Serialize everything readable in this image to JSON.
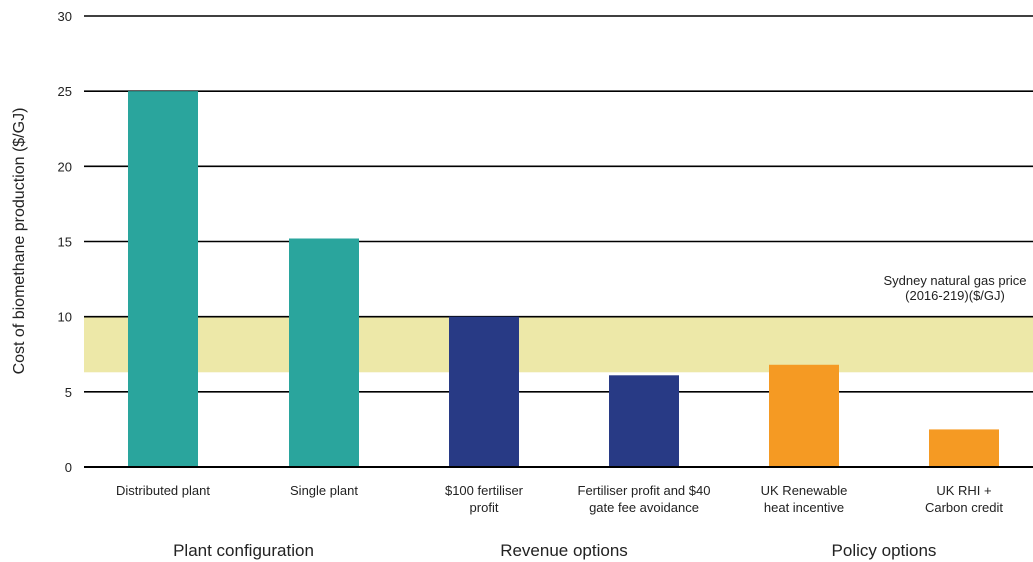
{
  "chart_data": {
    "type": "bar",
    "ylabel": "Cost of biomethane production ($/GJ)",
    "xlabel": "",
    "ylim": [
      0,
      30
    ],
    "yticks": [
      0,
      5,
      10,
      15,
      20,
      25,
      30
    ],
    "grid": true,
    "categories": [
      [
        "Distributed plant"
      ],
      [
        "Single plant"
      ],
      [
        "$100 fertiliser",
        "profit"
      ],
      [
        "Fertiliser profit and $40",
        "gate fee avoidance"
      ],
      [
        "UK Renewable",
        "heat incentive"
      ],
      [
        "UK RHI +",
        "Carbon credit"
      ]
    ],
    "values": [
      25.0,
      15.2,
      10.0,
      6.1,
      6.8,
      2.5
    ],
    "bar_colors": [
      "#2aa59d",
      "#2aa59d",
      "#283a85",
      "#283a85",
      "#f59a23",
      "#f59a23"
    ],
    "groups": [
      {
        "label": "Plant configuration",
        "members": [
          0,
          1
        ]
      },
      {
        "label": "Revenue options",
        "members": [
          2,
          3
        ]
      },
      {
        "label": "Policy options",
        "members": [
          4,
          5
        ]
      }
    ],
    "reference_band": {
      "range": [
        6.3,
        10.0
      ],
      "color": "#ede8a8",
      "label": [
        "Sydney natural gas price",
        "(2016-219)($/GJ)"
      ]
    }
  }
}
